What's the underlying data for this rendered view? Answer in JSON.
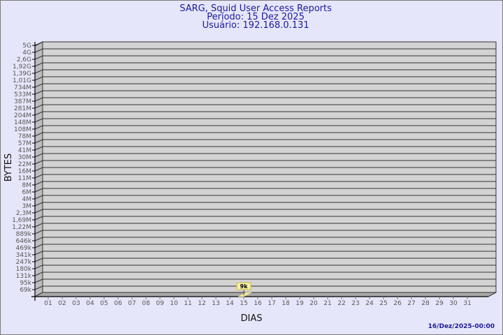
{
  "chart_data": {
    "type": "bar",
    "title": "SARG, Squid User Access Reports",
    "subtitle_lines": [
      "Período: 15 Dez 2025",
      "Usuário: 192.168.0.131"
    ],
    "xlabel": "DIAS",
    "ylabel": "BYTES",
    "y_tick_labels": [
      "5G",
      "4G",
      "2,6G",
      "1,92G",
      "1,39G",
      "1,01G",
      "734M",
      "533M",
      "387M",
      "281M",
      "204M",
      "148M",
      "108M",
      "78M",
      "57M",
      "41M",
      "30M",
      "22M",
      "16M",
      "11M",
      "8M",
      "6M",
      "4M",
      "3M",
      "2,3M",
      "1,69M",
      "1,22M",
      "889k",
      "646k",
      "469k",
      "341k",
      "247k",
      "180k",
      "131k",
      "95k",
      "69k"
    ],
    "y_scale": "log",
    "categories": [
      "01",
      "02",
      "03",
      "04",
      "05",
      "06",
      "07",
      "08",
      "09",
      "10",
      "11",
      "12",
      "13",
      "14",
      "15",
      "16",
      "17",
      "18",
      "19",
      "20",
      "21",
      "22",
      "23",
      "24",
      "25",
      "26",
      "27",
      "28",
      "29",
      "30",
      "31"
    ],
    "bars": [
      {
        "category": "15",
        "label": "9k",
        "value": 9000
      }
    ],
    "grid": true,
    "colors": {
      "background": "#e6e6fa",
      "plot": "#d3d3d3",
      "bar": "#f5e9a0",
      "title": "#1a1a9c"
    }
  },
  "footer": "16/Dez/2025-00:00"
}
